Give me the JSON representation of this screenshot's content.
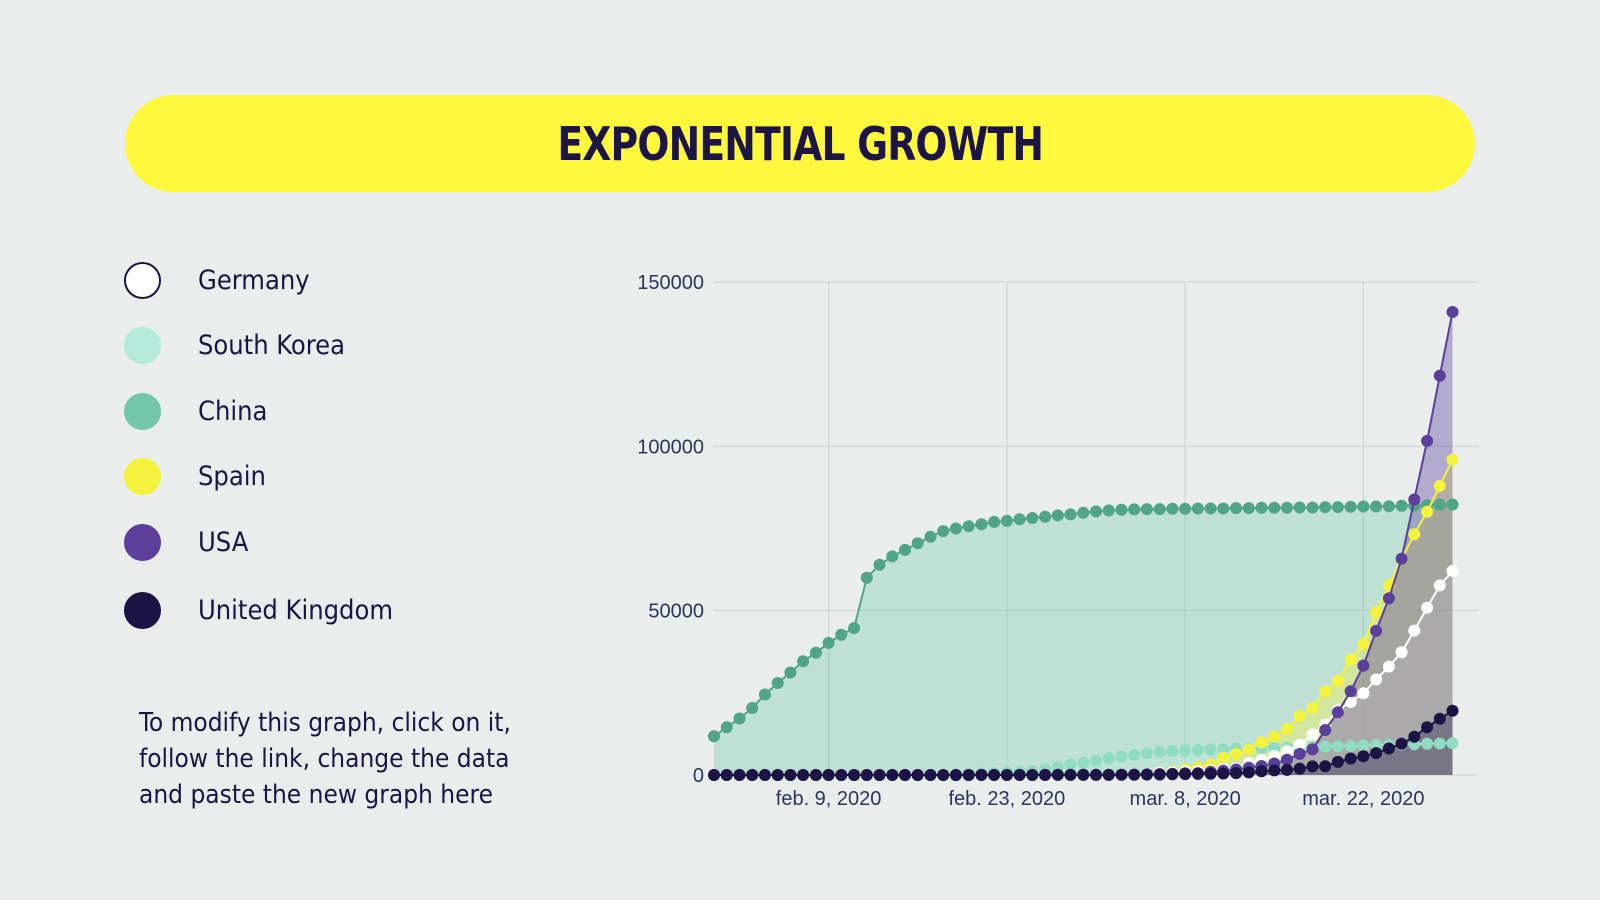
{
  "title": "EXPONENTIAL GROWTH",
  "legend": [
    {
      "name": "Germany",
      "color": "#ffffff",
      "border": "#1c1445"
    },
    {
      "name": "South Korea",
      "color": "#b3eadb",
      "border": "#b3eadb"
    },
    {
      "name": "China",
      "color": "#72c7aa",
      "border": "#72c7aa"
    },
    {
      "name": "Spain",
      "color": "#f4f23d",
      "border": "#f4f23d"
    },
    {
      "name": "USA",
      "color": "#5b3f9b",
      "border": "#5b3f9b"
    },
    {
      "name": "United Kingdom",
      "color": "#1c1445",
      "border": "#1c1445"
    }
  ],
  "note": {
    "line1": "To modify this graph, click on it,",
    "line2": "follow the link, change the data",
    "line3": "and paste the new graph here"
  },
  "chart_data": {
    "type": "area",
    "title": "",
    "xlabel": "",
    "ylabel": "",
    "x_start": "2020-01-31",
    "x_end": "2020-03-31",
    "x_range_days": [
      0,
      60
    ],
    "ylim": [
      0,
      150000
    ],
    "y_ticks": [
      0,
      50000,
      100000,
      150000
    ],
    "y_tick_labels": [
      "0",
      "50000",
      "100000",
      "150000"
    ],
    "x_tick_days": [
      9,
      23,
      37,
      51
    ],
    "x_tick_labels": [
      "feb. 9, 2020",
      "feb. 23, 2020",
      "mar. 8, 2020",
      "mar. 22, 2020"
    ],
    "grid": true,
    "series": [
      {
        "name": "China",
        "line": "#4fa585",
        "marker": "#4fa585",
        "fill": "rgba(114,199,170,0.35)",
        "points": [
          [
            0,
            11800
          ],
          [
            1,
            14500
          ],
          [
            2,
            17200
          ],
          [
            3,
            20400
          ],
          [
            4,
            24500
          ],
          [
            5,
            28000
          ],
          [
            6,
            31200
          ],
          [
            7,
            34600
          ],
          [
            8,
            37200
          ],
          [
            9,
            40200
          ],
          [
            10,
            42700
          ],
          [
            11,
            44700
          ],
          [
            12,
            60000
          ],
          [
            13,
            64000
          ],
          [
            14,
            66500
          ],
          [
            15,
            68500
          ],
          [
            16,
            70500
          ],
          [
            17,
            72500
          ],
          [
            18,
            74200
          ],
          [
            19,
            75000
          ],
          [
            20,
            75700
          ],
          [
            21,
            76300
          ],
          [
            22,
            77000
          ],
          [
            23,
            77300
          ],
          [
            24,
            77800
          ],
          [
            25,
            78200
          ],
          [
            26,
            78600
          ],
          [
            27,
            79000
          ],
          [
            28,
            79300
          ],
          [
            29,
            79800
          ],
          [
            30,
            80200
          ],
          [
            31,
            80500
          ],
          [
            32,
            80700
          ],
          [
            33,
            80800
          ],
          [
            34,
            80900
          ],
          [
            35,
            80900
          ],
          [
            36,
            81000
          ],
          [
            37,
            81000
          ],
          [
            38,
            81100
          ],
          [
            39,
            81100
          ],
          [
            40,
            81100
          ],
          [
            41,
            81200
          ],
          [
            42,
            81200
          ],
          [
            43,
            81300
          ],
          [
            44,
            81300
          ],
          [
            45,
            81300
          ],
          [
            46,
            81400
          ],
          [
            47,
            81400
          ],
          [
            48,
            81500
          ],
          [
            49,
            81500
          ],
          [
            50,
            81600
          ],
          [
            51,
            81700
          ],
          [
            52,
            81700
          ],
          [
            53,
            81800
          ],
          [
            54,
            81900
          ],
          [
            55,
            82000
          ],
          [
            56,
            82100
          ],
          [
            57,
            82200
          ],
          [
            58,
            82300
          ]
        ]
      },
      {
        "name": "South Korea",
        "line": "#b3eadb",
        "marker": "#8fdcc3",
        "fill": "rgba(179,234,219,0.30)",
        "points": [
          [
            0,
            11
          ],
          [
            2,
            15
          ],
          [
            4,
            24
          ],
          [
            6,
            27
          ],
          [
            8,
            28
          ],
          [
            10,
            28
          ],
          [
            12,
            28
          ],
          [
            14,
            30
          ],
          [
            16,
            31
          ],
          [
            18,
            58
          ],
          [
            19,
            104
          ],
          [
            20,
            204
          ],
          [
            21,
            433
          ],
          [
            22,
            602
          ],
          [
            23,
            833
          ],
          [
            24,
            977
          ],
          [
            25,
            1261
          ],
          [
            26,
            1766
          ],
          [
            27,
            2337
          ],
          [
            28,
            3150
          ],
          [
            29,
            3736
          ],
          [
            30,
            4335
          ],
          [
            31,
            5186
          ],
          [
            32,
            5621
          ],
          [
            33,
            6088
          ],
          [
            34,
            6593
          ],
          [
            35,
            7041
          ],
          [
            36,
            7314
          ],
          [
            37,
            7478
          ],
          [
            38,
            7513
          ],
          [
            39,
            7755
          ],
          [
            40,
            7869
          ],
          [
            41,
            7979
          ],
          [
            42,
            8086
          ],
          [
            43,
            8162
          ],
          [
            44,
            8236
          ],
          [
            45,
            8320
          ],
          [
            46,
            8413
          ],
          [
            47,
            8565
          ],
          [
            48,
            8652
          ],
          [
            49,
            8799
          ],
          [
            50,
            8897
          ],
          [
            51,
            8961
          ],
          [
            52,
            9037
          ],
          [
            53,
            9137
          ],
          [
            54,
            9241
          ],
          [
            55,
            9332
          ],
          [
            56,
            9478
          ],
          [
            57,
            9583
          ],
          [
            58,
            9661
          ]
        ]
      },
      {
        "name": "Spain",
        "line": "#f4f23d",
        "marker": "#f4f23d",
        "fill": "rgba(244,242,61,0.35)",
        "points": [
          [
            0,
            1
          ],
          [
            4,
            1
          ],
          [
            8,
            2
          ],
          [
            12,
            2
          ],
          [
            16,
            2
          ],
          [
            20,
            2
          ],
          [
            24,
            2
          ],
          [
            26,
            13
          ],
          [
            28,
            32
          ],
          [
            30,
            84
          ],
          [
            32,
            165
          ],
          [
            34,
            400
          ],
          [
            35,
            673
          ],
          [
            36,
            1073
          ],
          [
            37,
            1695
          ],
          [
            38,
            2277
          ],
          [
            39,
            3146
          ],
          [
            40,
            5232
          ],
          [
            41,
            6391
          ],
          [
            42,
            7798
          ],
          [
            43,
            9942
          ],
          [
            44,
            11748
          ],
          [
            45,
            13910
          ],
          [
            46,
            17963
          ],
          [
            47,
            20410
          ],
          [
            48,
            25374
          ],
          [
            49,
            28603
          ],
          [
            50,
            35136
          ],
          [
            51,
            39885
          ],
          [
            52,
            49515
          ],
          [
            53,
            57786
          ],
          [
            54,
            65719
          ],
          [
            55,
            73235
          ],
          [
            56,
            80110
          ],
          [
            57,
            87956
          ],
          [
            58,
            95923
          ]
        ]
      },
      {
        "name": "Germany",
        "line": "#ffffff",
        "marker": "#ffffff",
        "fill": "rgba(255,255,255,0.22)",
        "points": [
          [
            0,
            5
          ],
          [
            4,
            12
          ],
          [
            8,
            16
          ],
          [
            12,
            16
          ],
          [
            16,
            16
          ],
          [
            20,
            16
          ],
          [
            24,
            16
          ],
          [
            26,
            27
          ],
          [
            28,
            48
          ],
          [
            30,
            130
          ],
          [
            32,
            196
          ],
          [
            34,
            400
          ],
          [
            35,
            639
          ],
          [
            36,
            795
          ],
          [
            37,
            1040
          ],
          [
            38,
            1176
          ],
          [
            39,
            1457
          ],
          [
            40,
            1908
          ],
          [
            41,
            2078
          ],
          [
            42,
            3675
          ],
          [
            43,
            4585
          ],
          [
            44,
            5795
          ],
          [
            45,
            7272
          ],
          [
            46,
            9257
          ],
          [
            47,
            12327
          ],
          [
            48,
            15320
          ],
          [
            49,
            19848
          ],
          [
            50,
            22213
          ],
          [
            51,
            24873
          ],
          [
            52,
            29056
          ],
          [
            53,
            32986
          ],
          [
            54,
            37323
          ],
          [
            55,
            43938
          ],
          [
            56,
            50871
          ],
          [
            57,
            57695
          ],
          [
            58,
            62095
          ]
        ]
      },
      {
        "name": "USA",
        "line": "#5b3f9b",
        "marker": "#5b3f9b",
        "fill": "rgba(91,63,155,0.38)",
        "points": [
          [
            0,
            5
          ],
          [
            4,
            11
          ],
          [
            8,
            11
          ],
          [
            12,
            13
          ],
          [
            16,
            15
          ],
          [
            20,
            15
          ],
          [
            24,
            35
          ],
          [
            26,
            53
          ],
          [
            28,
            62
          ],
          [
            30,
            70
          ],
          [
            32,
            100
          ],
          [
            34,
            217
          ],
          [
            35,
            262
          ],
          [
            36,
            402
          ],
          [
            37,
            518
          ],
          [
            38,
            583
          ],
          [
            39,
            959
          ],
          [
            40,
            1281
          ],
          [
            41,
            1663
          ],
          [
            42,
            2179
          ],
          [
            43,
            2726
          ],
          [
            44,
            3499
          ],
          [
            45,
            4632
          ],
          [
            46,
            6421
          ],
          [
            47,
            7786
          ],
          [
            48,
            13680
          ],
          [
            49,
            19101
          ],
          [
            50,
            25493
          ],
          [
            51,
            33276
          ],
          [
            52,
            43847
          ],
          [
            53,
            53740
          ],
          [
            54,
            65778
          ],
          [
            55,
            83836
          ],
          [
            56,
            101657
          ],
          [
            57,
            121478
          ],
          [
            58,
            140886
          ]
        ]
      },
      {
        "name": "United Kingdom",
        "line": "#1c1445",
        "marker": "#1c1445",
        "fill": "rgba(28,20,69,0.35)",
        "points": [
          [
            0,
            2
          ],
          [
            4,
            3
          ],
          [
            8,
            8
          ],
          [
            12,
            9
          ],
          [
            16,
            9
          ],
          [
            20,
            9
          ],
          [
            24,
            13
          ],
          [
            26,
            13
          ],
          [
            28,
            19
          ],
          [
            30,
            36
          ],
          [
            32,
            51
          ],
          [
            34,
            116
          ],
          [
            35,
            164
          ],
          [
            36,
            209
          ],
          [
            37,
            278
          ],
          [
            38,
            321
          ],
          [
            39,
            382
          ],
          [
            40,
            456
          ],
          [
            41,
            590
          ],
          [
            42,
            798
          ],
          [
            43,
            1140
          ],
          [
            44,
            1391
          ],
          [
            45,
            1543
          ],
          [
            46,
            1950
          ],
          [
            47,
            2626
          ],
          [
            48,
            2689
          ],
          [
            49,
            3983
          ],
          [
            50,
            5018
          ],
          [
            51,
            5683
          ],
          [
            52,
            6650
          ],
          [
            53,
            8077
          ],
          [
            54,
            9529
          ],
          [
            55,
            11658
          ],
          [
            56,
            14543
          ],
          [
            57,
            17089
          ],
          [
            58,
            19522
          ]
        ]
      }
    ]
  }
}
